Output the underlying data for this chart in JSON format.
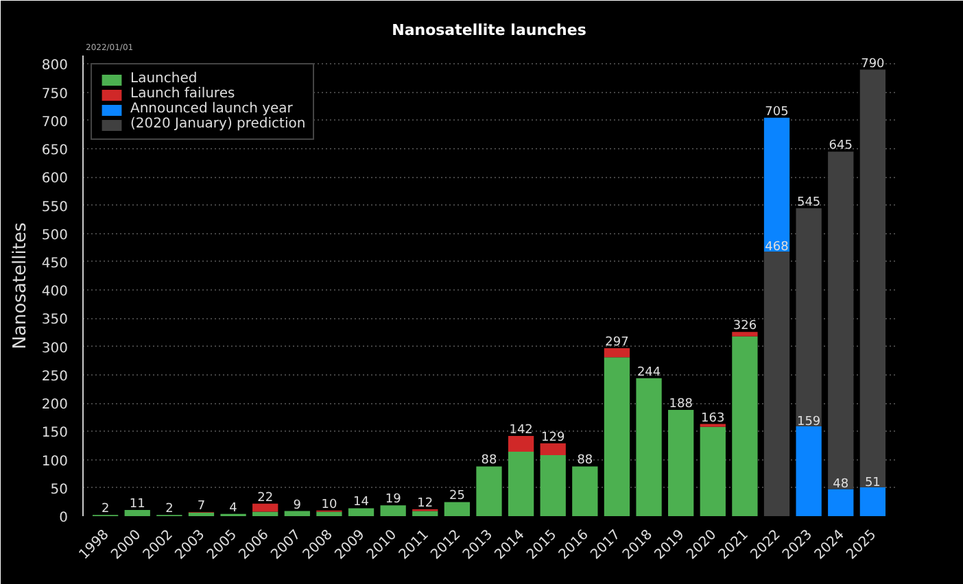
{
  "chart_data": {
    "type": "bar",
    "title": "Nanosatellite launches",
    "ylabel": "Nanosatellites",
    "annotations": [
      "2022/01/01"
    ],
    "categories": [
      "1998",
      "2000",
      "2002",
      "2003",
      "2005",
      "2006",
      "2007",
      "2008",
      "2009",
      "2010",
      "2011",
      "2012",
      "2013",
      "2014",
      "2015",
      "2016",
      "2017",
      "2018",
      "2019",
      "2020",
      "2021",
      "2022",
      "2023",
      "2024",
      "2025"
    ],
    "series": [
      {
        "name": "Launched",
        "color": "#4cb050",
        "values": [
          2,
          11,
          2,
          6,
          4,
          8,
          9,
          8,
          14,
          19,
          9,
          25,
          88,
          114,
          108,
          88,
          281,
          244,
          188,
          158,
          318,
          null,
          null,
          null,
          null
        ]
      },
      {
        "name": "Launch failures",
        "color": "#d02828",
        "values": [
          null,
          null,
          null,
          1,
          null,
          14,
          null,
          2,
          null,
          null,
          3,
          null,
          null,
          28,
          21,
          null,
          16,
          null,
          null,
          5,
          8,
          null,
          null,
          null,
          null
        ],
        "base": [
          null,
          null,
          null,
          6,
          null,
          8,
          null,
          8,
          null,
          null,
          9,
          null,
          null,
          114,
          108,
          null,
          281,
          null,
          null,
          158,
          318,
          null,
          null,
          null,
          null
        ]
      },
      {
        "name": "Announced launch year",
        "color": "#0a84ff",
        "values": [
          null,
          null,
          null,
          null,
          null,
          null,
          null,
          null,
          null,
          null,
          null,
          null,
          null,
          null,
          null,
          null,
          null,
          null,
          null,
          null,
          null,
          237,
          159,
          48,
          51
        ],
        "base": [
          null,
          null,
          null,
          null,
          null,
          null,
          null,
          null,
          null,
          null,
          null,
          null,
          null,
          null,
          null,
          null,
          null,
          null,
          null,
          null,
          null,
          468,
          0,
          0,
          0
        ],
        "value_labels": [
          null,
          null,
          null,
          null,
          null,
          null,
          null,
          null,
          null,
          null,
          null,
          null,
          null,
          null,
          null,
          null,
          null,
          null,
          null,
          null,
          null,
          null,
          "159",
          "48",
          "51"
        ]
      },
      {
        "name": "(2020 January) prediction",
        "color": "#404040",
        "values": [
          null,
          null,
          null,
          null,
          null,
          null,
          null,
          null,
          null,
          null,
          null,
          null,
          null,
          null,
          null,
          null,
          null,
          null,
          null,
          null,
          null,
          468,
          386,
          597,
          739
        ],
        "base": [
          null,
          null,
          null,
          null,
          null,
          null,
          null,
          null,
          null,
          null,
          null,
          null,
          null,
          null,
          null,
          null,
          null,
          null,
          null,
          null,
          null,
          0,
          159,
          48,
          51
        ],
        "value_labels": [
          null,
          null,
          null,
          null,
          null,
          null,
          null,
          null,
          null,
          null,
          null,
          null,
          null,
          null,
          null,
          null,
          null,
          null,
          null,
          null,
          null,
          "468",
          null,
          null,
          null
        ]
      }
    ],
    "totals": [
      "2",
      "11",
      "2",
      "7",
      "4",
      "22",
      "9",
      "10",
      "14",
      "19",
      "12",
      "25",
      "88",
      "142",
      "129",
      "88",
      "297",
      "244",
      "188",
      "163",
      "326",
      "705",
      "545",
      "645",
      "790"
    ],
    "ylim": [
      0,
      815
    ],
    "yticks": [
      0,
      50,
      100,
      150,
      200,
      250,
      300,
      350,
      400,
      450,
      500,
      550,
      600,
      650,
      700,
      750,
      800
    ],
    "grid": "y",
    "legend": "top left"
  }
}
